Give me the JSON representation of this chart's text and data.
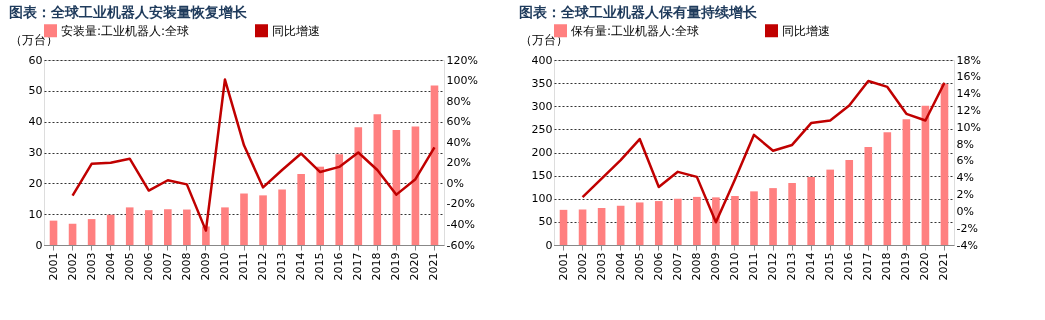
{
  "chart_data": [
    {
      "type": "bar",
      "title": "图表：全球工业机器人安装量恢复增长",
      "ylabel": "（万台）",
      "grid": "y",
      "legend": "top",
      "categories": [
        "2001",
        "2002",
        "2003",
        "2004",
        "2005",
        "2006",
        "2007",
        "2008",
        "2009",
        "2010",
        "2011",
        "2012",
        "2013",
        "2014",
        "2015",
        "2016",
        "2017",
        "2018",
        "2019",
        "2020",
        "2021"
      ],
      "series": [
        {
          "name": "安装量:工业机器人:全球",
          "color": "#ff8080",
          "values": [
            7.9,
            6.9,
            8.4,
            9.8,
            12.2,
            11.3,
            11.6,
            11.5,
            6,
            12.2,
            16.7,
            16.1,
            18.0,
            23.0,
            25.4,
            29.4,
            38.2,
            42.4,
            37.3,
            38.4,
            51.7
          ]
        },
        {
          "name": "同比增速",
          "type": "line",
          "axis": "y2",
          "color": "#c00000",
          "values": [
            null,
            -12,
            19,
            20,
            24,
            -7,
            3,
            -1,
            -46,
            101,
            37,
            -4,
            13,
            29,
            11,
            16,
            30,
            13,
            -11,
            4,
            35
          ]
        }
      ],
      "ylim": [
        0,
        60
      ],
      "yticks": [
        0,
        10,
        20,
        30,
        40,
        50,
        60
      ],
      "y2lim": [
        -60,
        120
      ],
      "y2ticks": [
        {
          "value": -60,
          "label": "-60%"
        },
        {
          "value": -40,
          "label": "-40%"
        },
        {
          "value": -20,
          "label": "-20%"
        },
        {
          "value": 0,
          "label": "0%"
        },
        {
          "value": 20,
          "label": "20%"
        },
        {
          "value": 40,
          "label": "40%"
        },
        {
          "value": 60,
          "label": "60%"
        },
        {
          "value": 80,
          "label": "80%"
        },
        {
          "value": 100,
          "label": "100%"
        },
        {
          "value": 120,
          "label": "120%"
        }
      ]
    },
    {
      "type": "bar",
      "title": "图表：全球工业机器人保有量持续增长",
      "ylabel": "（万台）",
      "grid": "y",
      "legend": "top",
      "categories": [
        "2001",
        "2002",
        "2003",
        "2004",
        "2005",
        "2006",
        "2007",
        "2008",
        "2009",
        "2010",
        "2011",
        "2012",
        "2013",
        "2014",
        "2015",
        "2016",
        "2017",
        "2018",
        "2019",
        "2020",
        "2021"
      ],
      "series": [
        {
          "name": "保有量:工业机器人:全球",
          "color": "#ff8080",
          "values": [
            76,
            77,
            80,
            85,
            92,
            95,
            100,
            104,
            103,
            106,
            116,
            123,
            134,
            147,
            163,
            184,
            212,
            244,
            272,
            301,
            348
          ]
        },
        {
          "name": "同比增速",
          "type": "line",
          "axis": "y2",
          "color": "#c00000",
          "values": [
            null,
            1.7,
            3.9,
            6.1,
            8.6,
            2.9,
            4.7,
            4.1,
            -1.3,
            3.8,
            9.1,
            7.2,
            7.9,
            10.5,
            10.8,
            12.6,
            15.5,
            14.8,
            11.6,
            10.8,
            15.3
          ]
        }
      ],
      "ylim": [
        0,
        400
      ],
      "yticks": [
        0,
        50,
        100,
        150,
        200,
        250,
        300,
        350,
        400
      ],
      "y2lim": [
        -4,
        18
      ],
      "y2ticks": [
        {
          "value": -4,
          "label": "-4%"
        },
        {
          "value": -2,
          "label": "-2%"
        },
        {
          "value": 0,
          "label": "0%"
        },
        {
          "value": 2,
          "label": "2%"
        },
        {
          "value": 4,
          "label": "4%"
        },
        {
          "value": 6,
          "label": "6%"
        },
        {
          "value": 8,
          "label": "8%"
        },
        {
          "value": 10,
          "label": "10%"
        },
        {
          "value": 12,
          "label": "12%"
        },
        {
          "value": 14,
          "label": "14%"
        },
        {
          "value": 16,
          "label": "16%"
        },
        {
          "value": 18,
          "label": "18%"
        }
      ]
    }
  ]
}
